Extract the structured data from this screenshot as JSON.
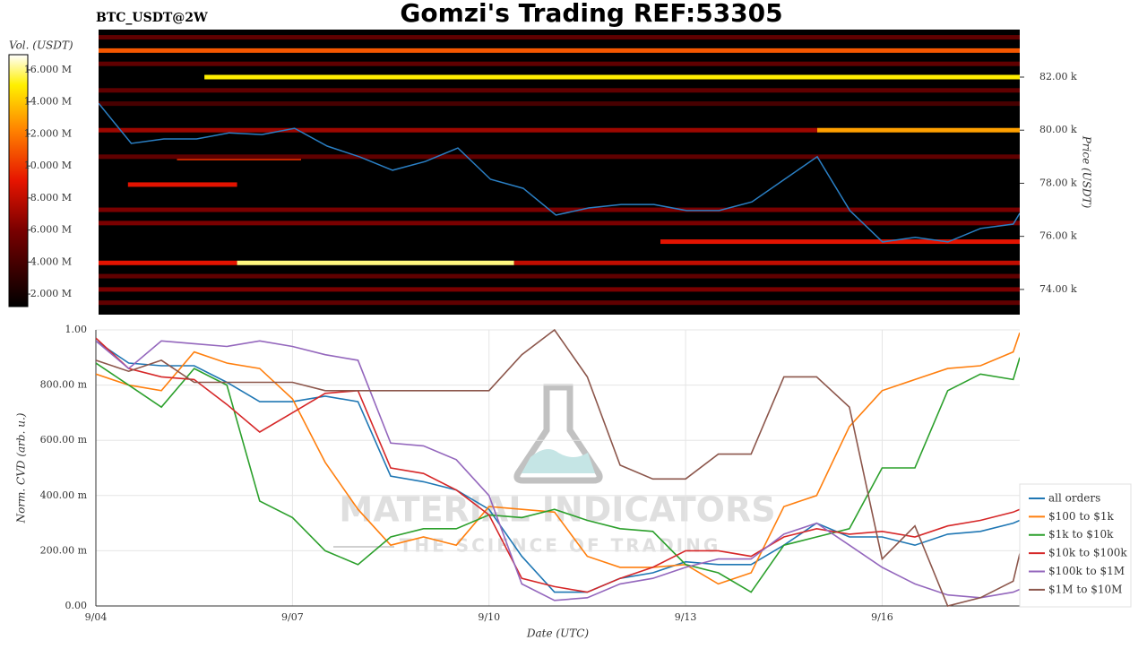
{
  "title": "Gomzi's Trading REF:53305",
  "watermark": {
    "name": "MATERIAL INDICATORS",
    "tagline": "THE SCIENCE OF TRADING"
  },
  "chart_data": [
    {
      "type": "heatmap",
      "label": "BTC_USDT@2W",
      "y_label": "Price (USDT)",
      "colorbar_label": "Vol. (USDT)",
      "xlim": [
        4,
        18.1
      ],
      "ylim": [
        73050,
        83790
      ],
      "yticks": [
        {
          "value": 74000,
          "label": "74.00 k"
        },
        {
          "value": 76000,
          "label": "76.00 k"
        },
        {
          "value": 78000,
          "label": "78.00 k"
        },
        {
          "value": 80000,
          "label": "80.00 k"
        },
        {
          "value": 82000,
          "label": "82.00 k"
        }
      ],
      "vlim": [
        1220000,
        16950000
      ],
      "vticks": [
        {
          "value": 2000000,
          "label": "2.000 M"
        },
        {
          "value": 4000000,
          "label": "4.000 M"
        },
        {
          "value": 6000000,
          "label": "6.000 M"
        },
        {
          "value": 8000000,
          "label": "8.000 M"
        },
        {
          "value": 10000000,
          "label": "10.000 M"
        },
        {
          "value": 12000000,
          "label": "12.000 M"
        },
        {
          "value": 14000000,
          "label": "14.000 M"
        },
        {
          "value": 16000000,
          "label": "16.000 M"
        }
      ],
      "x": [
        4,
        4.5,
        5,
        5.5,
        6,
        6.5,
        7,
        7.5,
        8,
        8.5,
        9,
        9.5,
        10,
        10.5,
        11,
        11.5,
        12,
        12.5,
        13,
        13.5,
        14,
        14.5,
        15,
        15.5,
        16,
        16.5,
        17,
        17.5,
        18,
        18.1
      ],
      "price": {
        "color": "#2a7fc4",
        "values": [
          81015,
          79500,
          79670,
          79670,
          79900,
          79835,
          80070,
          79400,
          78990,
          78490,
          78820,
          79330,
          78150,
          77810,
          76800,
          77070,
          77200,
          77200,
          76970,
          76970,
          77300,
          78150,
          79000,
          76970,
          75790,
          75960,
          75790,
          76300,
          76460,
          76870
        ]
      },
      "levels": [
        {
          "price": 83500,
          "start": 4,
          "end": 18.1,
          "volume": 5000000
        },
        {
          "price": 83000,
          "start": 4,
          "end": 18.1,
          "volume": 11000000
        },
        {
          "price": 82500,
          "start": 4,
          "end": 18.1,
          "volume": 5000000
        },
        {
          "price": 82000,
          "start": 5.62,
          "end": 18.1,
          "volume": 15000000
        },
        {
          "price": 81500,
          "start": 4,
          "end": 18.1,
          "volume": 5000000
        },
        {
          "price": 81000,
          "start": 4,
          "end": 18.1,
          "volume": 4000000
        },
        {
          "price": 80000,
          "start": 4,
          "end": 15.0,
          "volume": 7000000
        },
        {
          "price": 80000,
          "start": 15.0,
          "end": 18.1,
          "volume": 13000000
        },
        {
          "price": 78950,
          "start": 5.2,
          "end": 7.1,
          "volume": 10000000
        },
        {
          "price": 79000,
          "start": 4,
          "end": 18.1,
          "volume": 5000000
        },
        {
          "price": 77950,
          "start": 4.45,
          "end": 6.12,
          "volume": 9000000
        },
        {
          "price": 77000,
          "start": 4,
          "end": 18.1,
          "volume": 6000000
        },
        {
          "price": 76500,
          "start": 4,
          "end": 18.1,
          "volume": 6000000
        },
        {
          "price": 75800,
          "start": 12.6,
          "end": 18.1,
          "volume": 9000000
        },
        {
          "price": 75000,
          "start": 4,
          "end": 6.12,
          "volume": 9000000
        },
        {
          "price": 75000,
          "start": 6.12,
          "end": 10.36,
          "volume": 16000000
        },
        {
          "price": 75000,
          "start": 10.36,
          "end": 18.1,
          "volume": 8000000
        },
        {
          "price": 74500,
          "start": 4,
          "end": 18.1,
          "volume": 5000000
        },
        {
          "price": 74000,
          "start": 4,
          "end": 18.1,
          "volume": 6000000
        },
        {
          "price": 73500,
          "start": 4,
          "end": 18.1,
          "volume": 5000000
        }
      ]
    },
    {
      "type": "line",
      "x_label": "Date (UTC)",
      "y_label": "Norm. CVD (arb. u.)",
      "grid": true,
      "legend": "right",
      "xlim": [
        4,
        18.1
      ],
      "xticks": [
        {
          "value": 4,
          "label": "9/04"
        },
        {
          "value": 7,
          "label": "9/07"
        },
        {
          "value": 10,
          "label": "9/10"
        },
        {
          "value": 13,
          "label": "9/13"
        },
        {
          "value": 16,
          "label": "9/16"
        }
      ],
      "ylim": [
        0,
        1
      ],
      "yticks": [
        {
          "value": 0,
          "label": "0.00"
        },
        {
          "value": 0.2,
          "label": "200.00 m"
        },
        {
          "value": 0.4,
          "label": "400.00 m"
        },
        {
          "value": 0.6,
          "label": "600.00 m"
        },
        {
          "value": 0.8,
          "label": "800.00 m"
        },
        {
          "value": 1,
          "label": "1.00"
        }
      ],
      "x": [
        4,
        4.5,
        5,
        5.5,
        6,
        6.5,
        7,
        7.5,
        8,
        8.5,
        9,
        9.5,
        10,
        10.5,
        11,
        11.5,
        12,
        12.5,
        13,
        13.5,
        14,
        14.5,
        15,
        15.5,
        16,
        16.5,
        17,
        17.5,
        18,
        18.1
      ],
      "series": [
        {
          "name": "all orders",
          "color": "#1f77b4",
          "values": [
            0.96,
            0.88,
            0.87,
            0.87,
            0.81,
            0.74,
            0.74,
            0.76,
            0.74,
            0.47,
            0.45,
            0.42,
            0.35,
            0.18,
            0.05,
            0.05,
            0.1,
            0.12,
            0.16,
            0.15,
            0.15,
            0.22,
            0.3,
            0.25,
            0.25,
            0.22,
            0.26,
            0.27,
            0.3,
            0.31
          ]
        },
        {
          "name": "$100 to $1k",
          "color": "#ff7f0e",
          "values": [
            0.84,
            0.8,
            0.78,
            0.92,
            0.88,
            0.86,
            0.75,
            0.52,
            0.35,
            0.22,
            0.25,
            0.22,
            0.36,
            0.35,
            0.34,
            0.18,
            0.14,
            0.14,
            0.15,
            0.08,
            0.12,
            0.36,
            0.4,
            0.65,
            0.78,
            0.82,
            0.86,
            0.87,
            0.92,
            0.99
          ]
        },
        {
          "name": "$1k to $10k",
          "color": "#2ca02c",
          "values": [
            0.88,
            0.8,
            0.72,
            0.86,
            0.8,
            0.38,
            0.32,
            0.2,
            0.15,
            0.25,
            0.28,
            0.28,
            0.33,
            0.32,
            0.35,
            0.31,
            0.28,
            0.27,
            0.15,
            0.12,
            0.05,
            0.22,
            0.25,
            0.28,
            0.5,
            0.5,
            0.78,
            0.84,
            0.82,
            0.9
          ]
        },
        {
          "name": "$10k to $100k",
          "color": "#d62728",
          "values": [
            0.97,
            0.86,
            0.83,
            0.82,
            0.73,
            0.63,
            0.7,
            0.77,
            0.78,
            0.5,
            0.48,
            0.42,
            0.33,
            0.1,
            0.07,
            0.05,
            0.1,
            0.14,
            0.2,
            0.2,
            0.18,
            0.25,
            0.28,
            0.26,
            0.27,
            0.25,
            0.29,
            0.31,
            0.34,
            0.35
          ]
        },
        {
          "name": "$100k to $1M",
          "color": "#9467bd",
          "values": [
            0.96,
            0.86,
            0.96,
            0.95,
            0.94,
            0.96,
            0.94,
            0.91,
            0.89,
            0.59,
            0.58,
            0.53,
            0.4,
            0.08,
            0.02,
            0.03,
            0.08,
            0.1,
            0.14,
            0.17,
            0.17,
            0.26,
            0.3,
            0.22,
            0.14,
            0.08,
            0.04,
            0.03,
            0.05,
            0.06
          ]
        },
        {
          "name": "$1M to $10M",
          "color": "#8c564b",
          "values": [
            0.89,
            0.85,
            0.89,
            0.81,
            0.81,
            0.81,
            0.81,
            0.78,
            0.78,
            0.78,
            0.78,
            0.78,
            0.78,
            0.91,
            1.0,
            0.83,
            0.51,
            0.46,
            0.46,
            0.55,
            0.55,
            0.83,
            0.83,
            0.72,
            0.17,
            0.29,
            0.0,
            0.03,
            0.09,
            0.19
          ]
        }
      ]
    }
  ]
}
